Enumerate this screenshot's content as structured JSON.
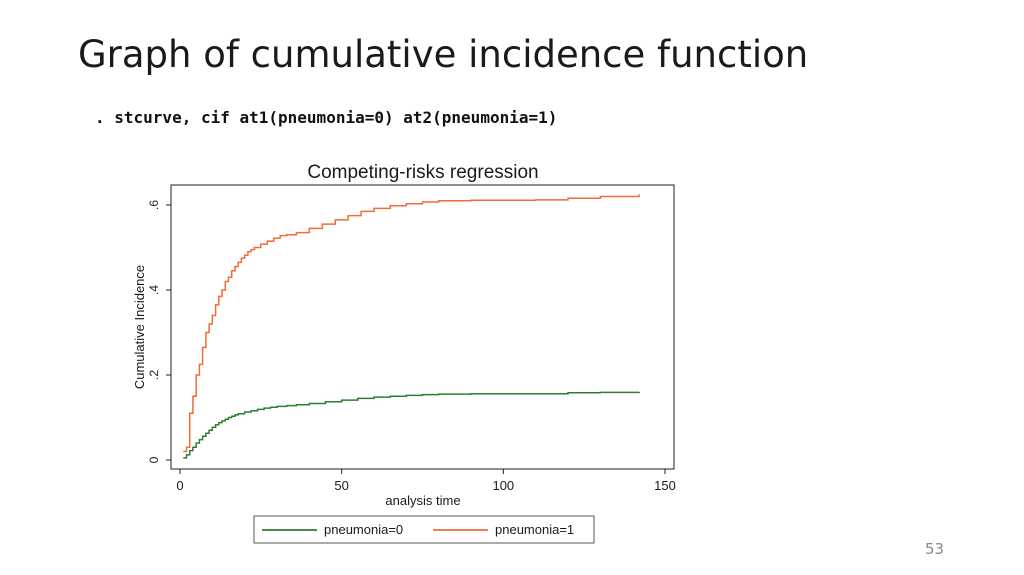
{
  "slide": {
    "title": "Graph of cumulative incidence function",
    "command": ". stcurve, cif at1(pneumonia=0) at2(pneumonia=1)",
    "page_number": "53"
  },
  "chart_data": {
    "type": "line",
    "title": "Competing-risks regression",
    "xlabel": "analysis time",
    "ylabel": "Cumulative Incidence",
    "xlim": [
      0,
      150
    ],
    "ylim": [
      0,
      0.6
    ],
    "x_ticks": [
      0,
      50,
      100,
      150
    ],
    "x_tick_labels": [
      "0",
      "50",
      "100",
      "150"
    ],
    "y_ticks": [
      0,
      0.2,
      0.4,
      0.6
    ],
    "y_tick_labels": [
      "0",
      ".2",
      ".4",
      ".6"
    ],
    "grid": false,
    "legend_position": "bottom",
    "step": true,
    "series": [
      {
        "name": "pneumonia=0",
        "color": "#2e7d32",
        "x": [
          1,
          2,
          3,
          4,
          5,
          6,
          7,
          8,
          9,
          10,
          11,
          12,
          13,
          14,
          15,
          16,
          17,
          18,
          20,
          22,
          24,
          26,
          28,
          30,
          33,
          36,
          40,
          45,
          50,
          55,
          60,
          65,
          70,
          75,
          80,
          90,
          100,
          110,
          120,
          130,
          142
        ],
        "y": [
          0.005,
          0.012,
          0.022,
          0.03,
          0.04,
          0.048,
          0.056,
          0.063,
          0.07,
          0.077,
          0.083,
          0.088,
          0.092,
          0.096,
          0.1,
          0.103,
          0.106,
          0.109,
          0.113,
          0.116,
          0.119,
          0.122,
          0.124,
          0.126,
          0.128,
          0.13,
          0.133,
          0.137,
          0.141,
          0.145,
          0.148,
          0.15,
          0.152,
          0.154,
          0.155,
          0.156,
          0.156,
          0.156,
          0.158,
          0.159,
          0.16
        ]
      },
      {
        "name": "pneumonia=1",
        "color": "#f26b38",
        "x": [
          1,
          2,
          3,
          4,
          5,
          6,
          7,
          8,
          9,
          10,
          11,
          12,
          13,
          14,
          15,
          16,
          17,
          18,
          19,
          20,
          21,
          22,
          23,
          25,
          27,
          29,
          31,
          33,
          36,
          40,
          44,
          48,
          52,
          56,
          60,
          65,
          70,
          75,
          80,
          90,
          100,
          110,
          120,
          130,
          142
        ],
        "y": [
          0.02,
          0.03,
          0.11,
          0.15,
          0.2,
          0.225,
          0.265,
          0.3,
          0.32,
          0.34,
          0.365,
          0.385,
          0.4,
          0.42,
          0.43,
          0.445,
          0.455,
          0.465,
          0.475,
          0.482,
          0.49,
          0.495,
          0.5,
          0.508,
          0.515,
          0.522,
          0.528,
          0.53,
          0.535,
          0.545,
          0.555,
          0.565,
          0.575,
          0.585,
          0.592,
          0.598,
          0.603,
          0.607,
          0.61,
          0.611,
          0.611,
          0.612,
          0.616,
          0.62,
          0.625
        ]
      }
    ]
  }
}
